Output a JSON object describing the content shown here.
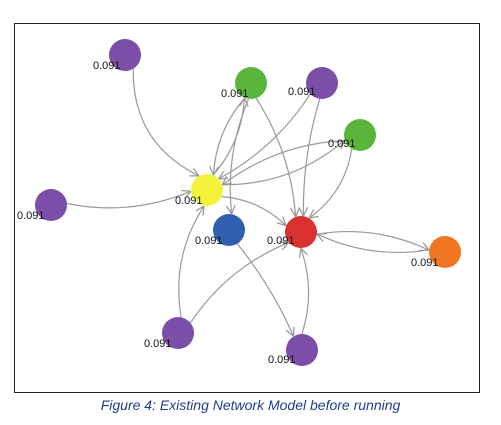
{
  "caption": "Figure 4: Existing Network Model before running",
  "colors": {
    "purple": "#7b4fa8",
    "green": "#5ab63a",
    "yellow": "#f2f23a",
    "blue": "#2f5fae",
    "red": "#d93030",
    "orange": "#f07622",
    "edge": "#999999"
  },
  "nodes": [
    {
      "id": "p1",
      "color": "purple",
      "label": "0.091"
    },
    {
      "id": "g1",
      "color": "green",
      "label": "0.091"
    },
    {
      "id": "p2",
      "color": "purple",
      "label": "0.091"
    },
    {
      "id": "g2",
      "color": "green",
      "label": "0.091"
    },
    {
      "id": "y",
      "color": "yellow",
      "label": "0.091"
    },
    {
      "id": "p3",
      "color": "purple",
      "label": "0.091"
    },
    {
      "id": "b",
      "color": "blue",
      "label": "0.091"
    },
    {
      "id": "r",
      "color": "red",
      "label": "0.091"
    },
    {
      "id": "o",
      "color": "orange",
      "label": "0.091"
    },
    {
      "id": "p4",
      "color": "purple",
      "label": "0.091"
    },
    {
      "id": "p5",
      "color": "purple",
      "label": "0.091"
    }
  ],
  "edges": [
    {
      "from": "p1",
      "to": "y"
    },
    {
      "from": "p3",
      "to": "y"
    },
    {
      "from": "p4",
      "to": "y"
    },
    {
      "from": "g1",
      "to": "y"
    },
    {
      "from": "p2",
      "to": "y"
    },
    {
      "from": "g2",
      "to": "y"
    },
    {
      "from": "y",
      "to": "g1"
    },
    {
      "from": "y",
      "to": "g2"
    },
    {
      "from": "y",
      "to": "r"
    },
    {
      "from": "g1",
      "to": "r"
    },
    {
      "from": "p2",
      "to": "r"
    },
    {
      "from": "g2",
      "to": "r"
    },
    {
      "from": "p4",
      "to": "r"
    },
    {
      "from": "p5",
      "to": "r"
    },
    {
      "from": "o",
      "to": "r"
    },
    {
      "from": "r",
      "to": "o"
    },
    {
      "from": "b",
      "to": "p5"
    },
    {
      "from": "g1",
      "to": "b"
    }
  ]
}
